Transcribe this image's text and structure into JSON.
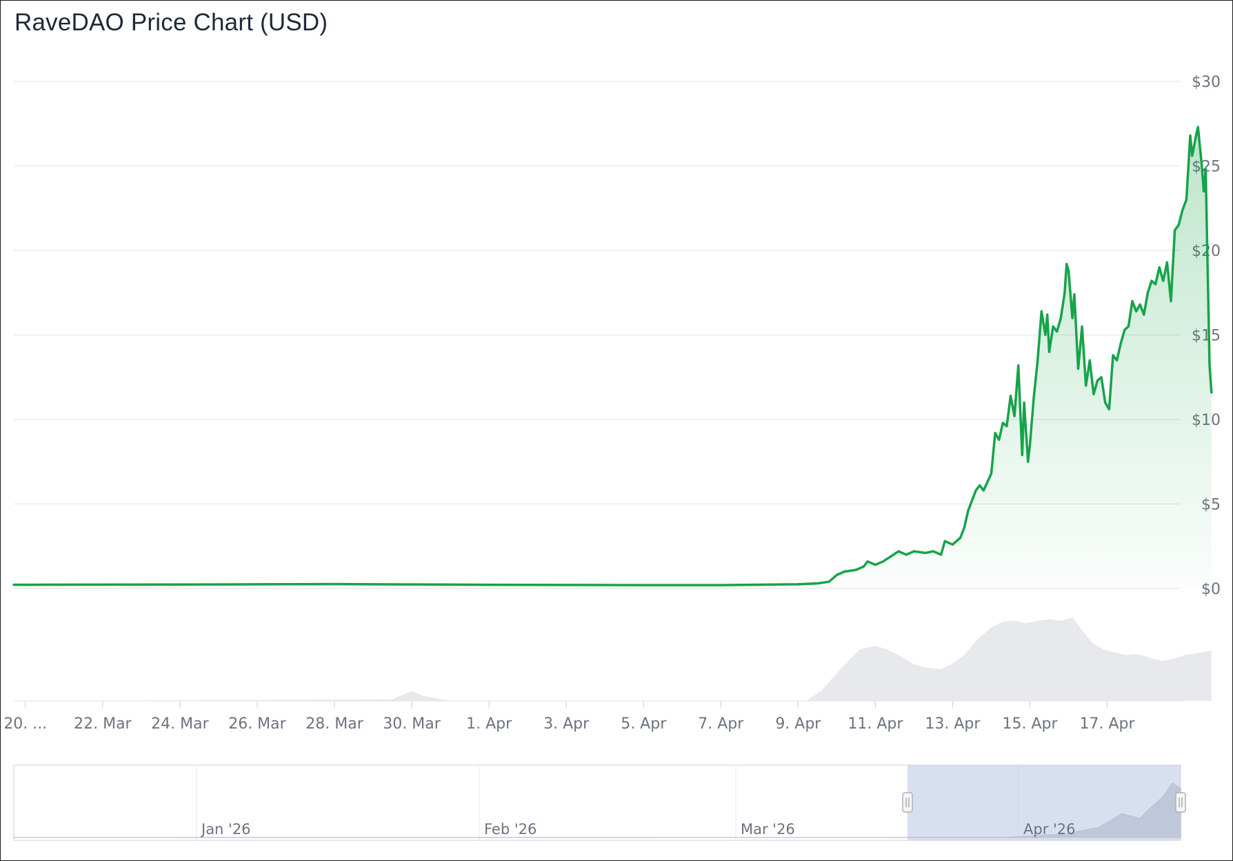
{
  "chart_data": {
    "type": "area",
    "title": "RaveDAO Price Chart (USD)",
    "ylim": [
      0,
      30
    ],
    "y_ticks": [
      "$0",
      "$5",
      "$10",
      "$15",
      "$20",
      "$25",
      "$30"
    ],
    "y_tick_values": [
      0,
      5,
      10,
      15,
      20,
      25,
      30
    ],
    "x_tick_labels": [
      "20. ...",
      "22. Mar",
      "24. Mar",
      "26. Mar",
      "28. Mar",
      "30. Mar",
      "1. Apr",
      "3. Apr",
      "5. Apr",
      "7. Apr",
      "9. Apr",
      "11. Apr",
      "13. Apr",
      "15. Apr",
      "17. Apr"
    ],
    "x_tick_days": [
      0,
      2,
      4,
      6,
      8,
      10,
      12,
      14,
      16,
      18,
      20,
      22,
      24,
      26,
      28
    ],
    "x_range_days": [
      -0.3,
      29.9
    ],
    "series": [
      {
        "color": "#16a34a",
        "points": [
          [
            -0.3,
            0.22
          ],
          [
            2,
            0.23
          ],
          [
            5,
            0.24
          ],
          [
            8,
            0.26
          ],
          [
            10,
            0.24
          ],
          [
            12,
            0.22
          ],
          [
            14,
            0.21
          ],
          [
            16,
            0.2
          ],
          [
            18,
            0.2
          ],
          [
            20,
            0.25
          ],
          [
            20.5,
            0.3
          ],
          [
            20.8,
            0.4
          ],
          [
            21.0,
            0.8
          ],
          [
            21.2,
            1.0
          ],
          [
            21.5,
            1.1
          ],
          [
            21.7,
            1.3
          ],
          [
            21.8,
            1.6
          ],
          [
            22.0,
            1.4
          ],
          [
            22.2,
            1.6
          ],
          [
            22.4,
            1.9
          ],
          [
            22.6,
            2.2
          ],
          [
            22.8,
            2.0
          ],
          [
            23.0,
            2.2
          ],
          [
            23.3,
            2.1
          ],
          [
            23.5,
            2.2
          ],
          [
            23.7,
            2.0
          ],
          [
            23.8,
            2.8
          ],
          [
            24.0,
            2.6
          ],
          [
            24.2,
            3.0
          ],
          [
            24.3,
            3.6
          ],
          [
            24.4,
            4.6
          ],
          [
            24.5,
            5.2
          ],
          [
            24.6,
            5.8
          ],
          [
            24.7,
            6.1
          ],
          [
            24.8,
            5.8
          ],
          [
            24.9,
            6.3
          ],
          [
            25.0,
            6.8
          ],
          [
            25.1,
            9.2
          ],
          [
            25.2,
            8.8
          ],
          [
            25.3,
            9.8
          ],
          [
            25.4,
            9.6
          ],
          [
            25.5,
            11.4
          ],
          [
            25.6,
            10.2
          ],
          [
            25.7,
            13.2
          ],
          [
            25.8,
            7.9
          ],
          [
            25.85,
            11.0
          ],
          [
            25.95,
            7.5
          ],
          [
            26.0,
            8.5
          ],
          [
            26.1,
            11.3
          ],
          [
            26.2,
            13.5
          ],
          [
            26.3,
            16.4
          ],
          [
            26.4,
            15.0
          ],
          [
            26.45,
            16.2
          ],
          [
            26.5,
            14.0
          ],
          [
            26.6,
            15.5
          ],
          [
            26.7,
            15.2
          ],
          [
            26.8,
            16.0
          ],
          [
            26.9,
            17.5
          ],
          [
            26.95,
            19.2
          ],
          [
            27.0,
            18.8
          ],
          [
            27.1,
            16.0
          ],
          [
            27.15,
            17.4
          ],
          [
            27.25,
            13.0
          ],
          [
            27.35,
            15.5
          ],
          [
            27.45,
            12.0
          ],
          [
            27.55,
            13.5
          ],
          [
            27.65,
            11.5
          ],
          [
            27.75,
            12.3
          ],
          [
            27.85,
            12.5
          ],
          [
            27.95,
            11.0
          ],
          [
            28.05,
            10.6
          ],
          [
            28.15,
            13.8
          ],
          [
            28.25,
            13.5
          ],
          [
            28.35,
            14.5
          ],
          [
            28.45,
            15.3
          ],
          [
            28.55,
            15.5
          ],
          [
            28.65,
            17.0
          ],
          [
            28.75,
            16.4
          ],
          [
            28.85,
            16.8
          ],
          [
            28.95,
            16.2
          ],
          [
            29.05,
            17.5
          ],
          [
            29.15,
            18.2
          ],
          [
            29.25,
            18.0
          ],
          [
            29.35,
            19.0
          ],
          [
            29.45,
            18.2
          ],
          [
            29.55,
            19.3
          ],
          [
            29.65,
            17.0
          ],
          [
            29.75,
            21.2
          ],
          [
            29.85,
            21.5
          ],
          [
            29.95,
            22.4
          ],
          [
            30.05,
            23.0
          ],
          [
            30.15,
            26.8
          ],
          [
            30.2,
            25.6
          ],
          [
            30.3,
            26.8
          ],
          [
            30.35,
            27.3
          ],
          [
            30.45,
            25.0
          ],
          [
            30.5,
            23.5
          ],
          [
            30.55,
            24.8
          ],
          [
            30.65,
            13.2
          ],
          [
            30.7,
            11.6
          ]
        ]
      }
    ],
    "volume_points": [
      [
        -0.3,
        0.0
      ],
      [
        9.5,
        0.02
      ],
      [
        10.0,
        0.12
      ],
      [
        10.3,
        0.06
      ],
      [
        11,
        0.0
      ],
      [
        20.2,
        0.0
      ],
      [
        20.6,
        0.12
      ],
      [
        20.9,
        0.28
      ],
      [
        21.3,
        0.48
      ],
      [
        21.6,
        0.62
      ],
      [
        22.0,
        0.66
      ],
      [
        22.3,
        0.62
      ],
      [
        22.6,
        0.55
      ],
      [
        23.0,
        0.44
      ],
      [
        23.3,
        0.4
      ],
      [
        23.7,
        0.38
      ],
      [
        24.0,
        0.45
      ],
      [
        24.3,
        0.55
      ],
      [
        24.6,
        0.72
      ],
      [
        25.0,
        0.88
      ],
      [
        25.3,
        0.95
      ],
      [
        25.6,
        0.96
      ],
      [
        25.9,
        0.93
      ],
      [
        26.2,
        0.96
      ],
      [
        26.5,
        0.98
      ],
      [
        26.8,
        0.96
      ],
      [
        27.1,
        1.0
      ],
      [
        27.35,
        0.85
      ],
      [
        27.6,
        0.7
      ],
      [
        27.9,
        0.62
      ],
      [
        28.2,
        0.58
      ],
      [
        28.5,
        0.55
      ],
      [
        28.8,
        0.56
      ],
      [
        29.1,
        0.52
      ],
      [
        29.4,
        0.48
      ],
      [
        29.7,
        0.5
      ],
      [
        30.0,
        0.55
      ],
      [
        30.3,
        0.57
      ],
      [
        30.7,
        0.6
      ]
    ],
    "navigator": {
      "labels": [
        "Jan '26",
        "Feb '26",
        "Mar '26",
        "Apr '26"
      ]
    },
    "grid": true,
    "legend": "none"
  }
}
